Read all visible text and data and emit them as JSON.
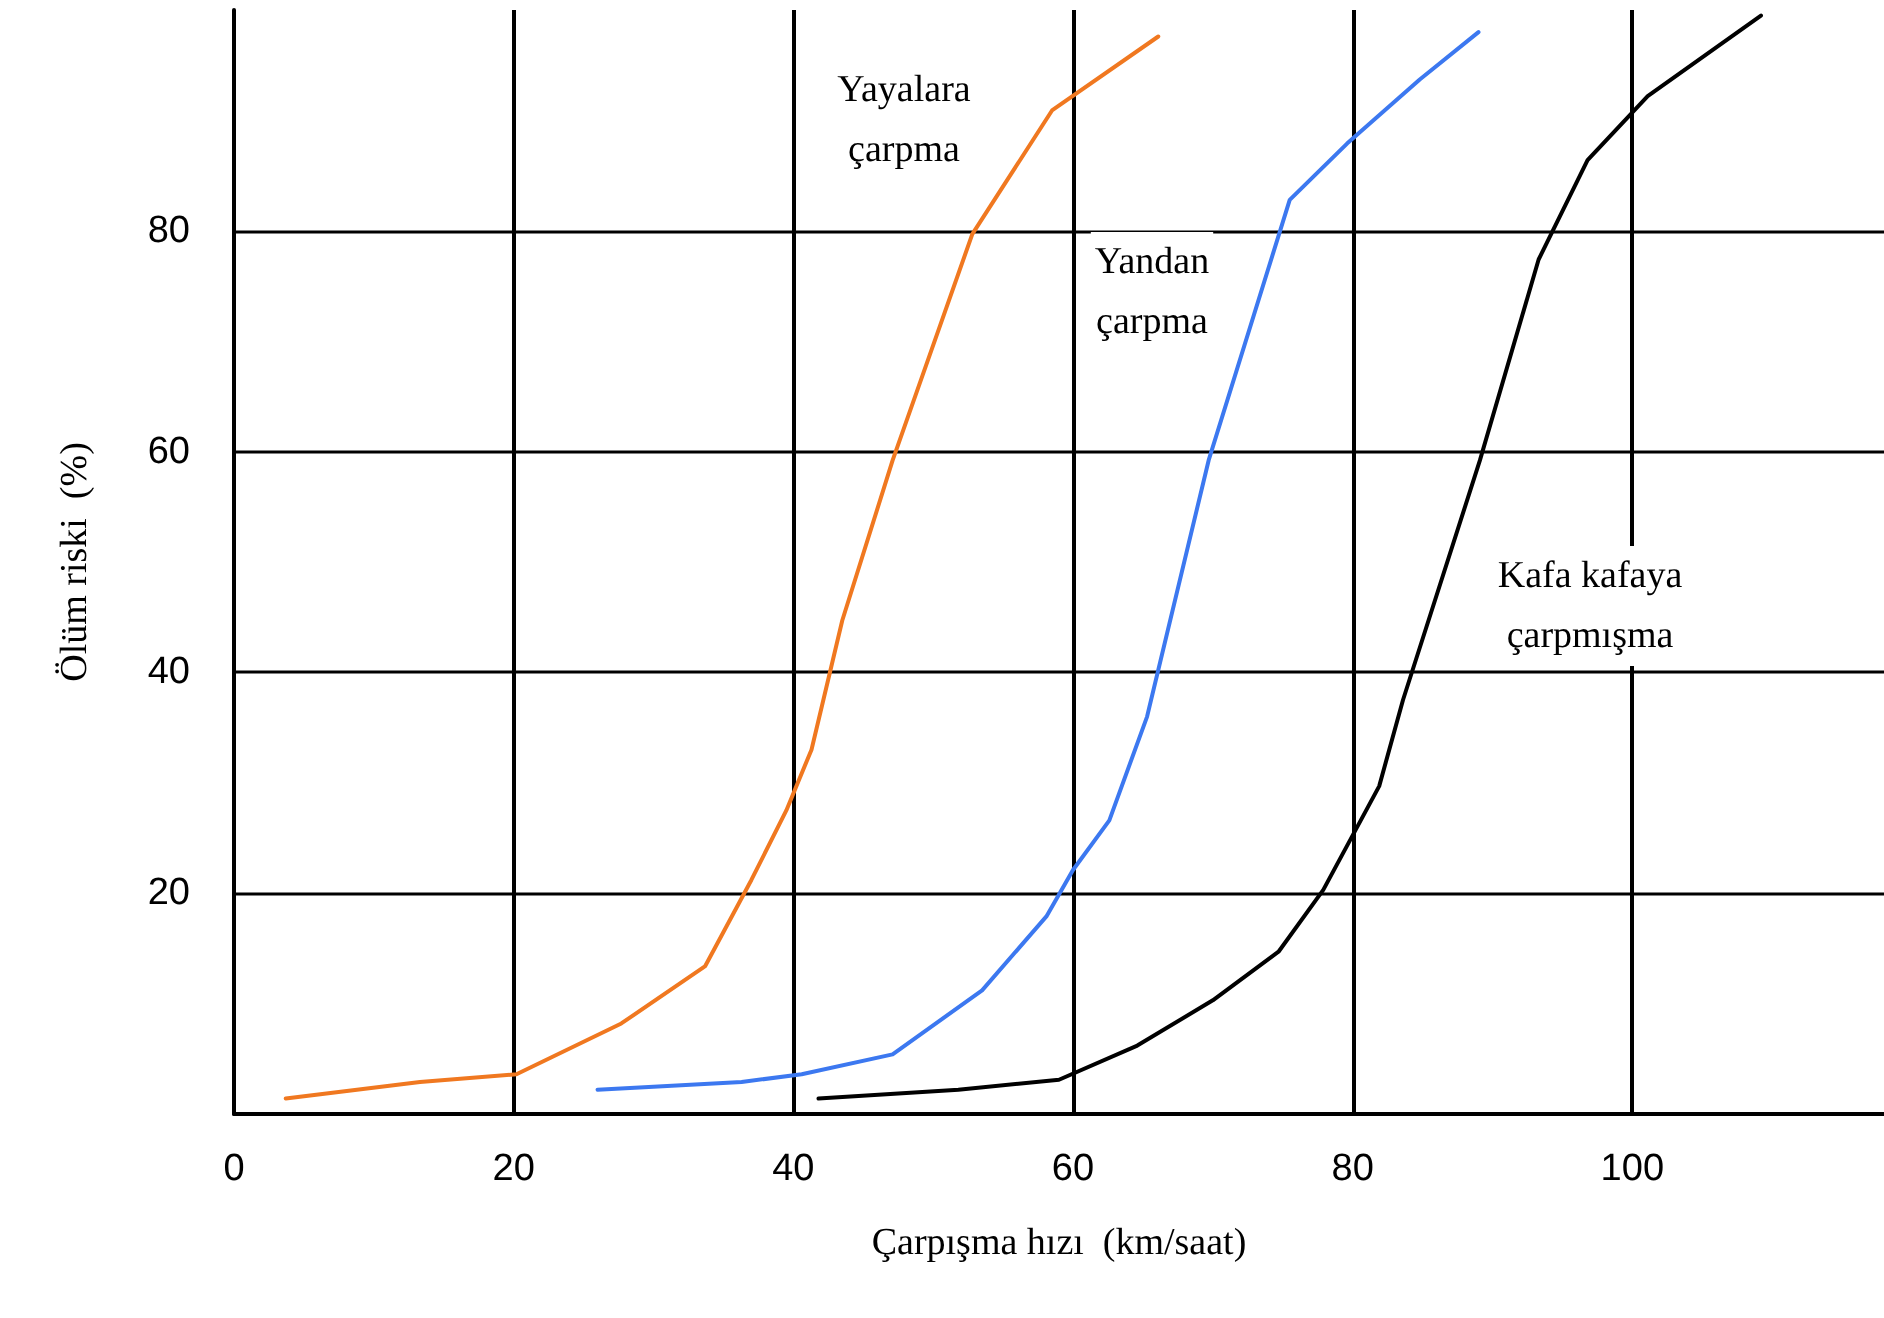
{
  "chart_data": {
    "type": "line",
    "xlabel": "Çarpışma hızı  (km/saat)",
    "ylabel": "Ölüm riski  (%)",
    "xlim": [
      0,
      118
    ],
    "xticks": [
      0,
      20,
      40,
      60,
      80,
      100
    ],
    "ylim": [
      0,
      100
    ],
    "yticks": [
      20,
      40,
      60,
      80
    ],
    "grid": true,
    "marker": "none",
    "line_style": "solid",
    "series": [
      {
        "color": "#f07820",
        "x": [
          3.7,
          13.3,
          20.2,
          27.7,
          33.7,
          37,
          39.5,
          41.3,
          43.5,
          47.1,
          52.8,
          58.5,
          66.1
        ],
        "values": [
          1.4,
          2.9,
          3.6,
          8.2,
          13.4,
          21.2,
          27.5,
          33,
          44.7,
          59.2,
          79.7,
          90.9,
          97.6
        ]
      },
      {
        "color": "#3c78f0",
        "x": [
          26,
          36.3,
          40.6,
          47.1,
          53.5,
          58.1,
          60,
          62.6,
          65.3,
          69.7,
          75.5,
          79.6,
          84.8,
          89
        ],
        "values": [
          2.2,
          2.9,
          3.6,
          5.4,
          11.2,
          17.9,
          22.1,
          26.6,
          36,
          59.2,
          82.8,
          87.9,
          93.7,
          98
        ]
      },
      {
        "color": "#000000",
        "x": [
          41.8,
          51.8,
          59,
          64.6,
          70,
          74.7,
          77.9,
          81.9,
          83.6,
          89.1,
          93.3,
          96.8,
          101.1,
          109.2
        ],
        "values": [
          1.4,
          2.2,
          3.1,
          6.2,
          10.3,
          14.7,
          20.3,
          29.7,
          37.5,
          59.2,
          77.4,
          86.4,
          92.2,
          99.5
        ]
      }
    ],
    "annotations": [
      "Yayalara\nçarpma",
      "Yandan\nçarpma",
      "Kafa kafaya\nçarpmışma"
    ]
  }
}
